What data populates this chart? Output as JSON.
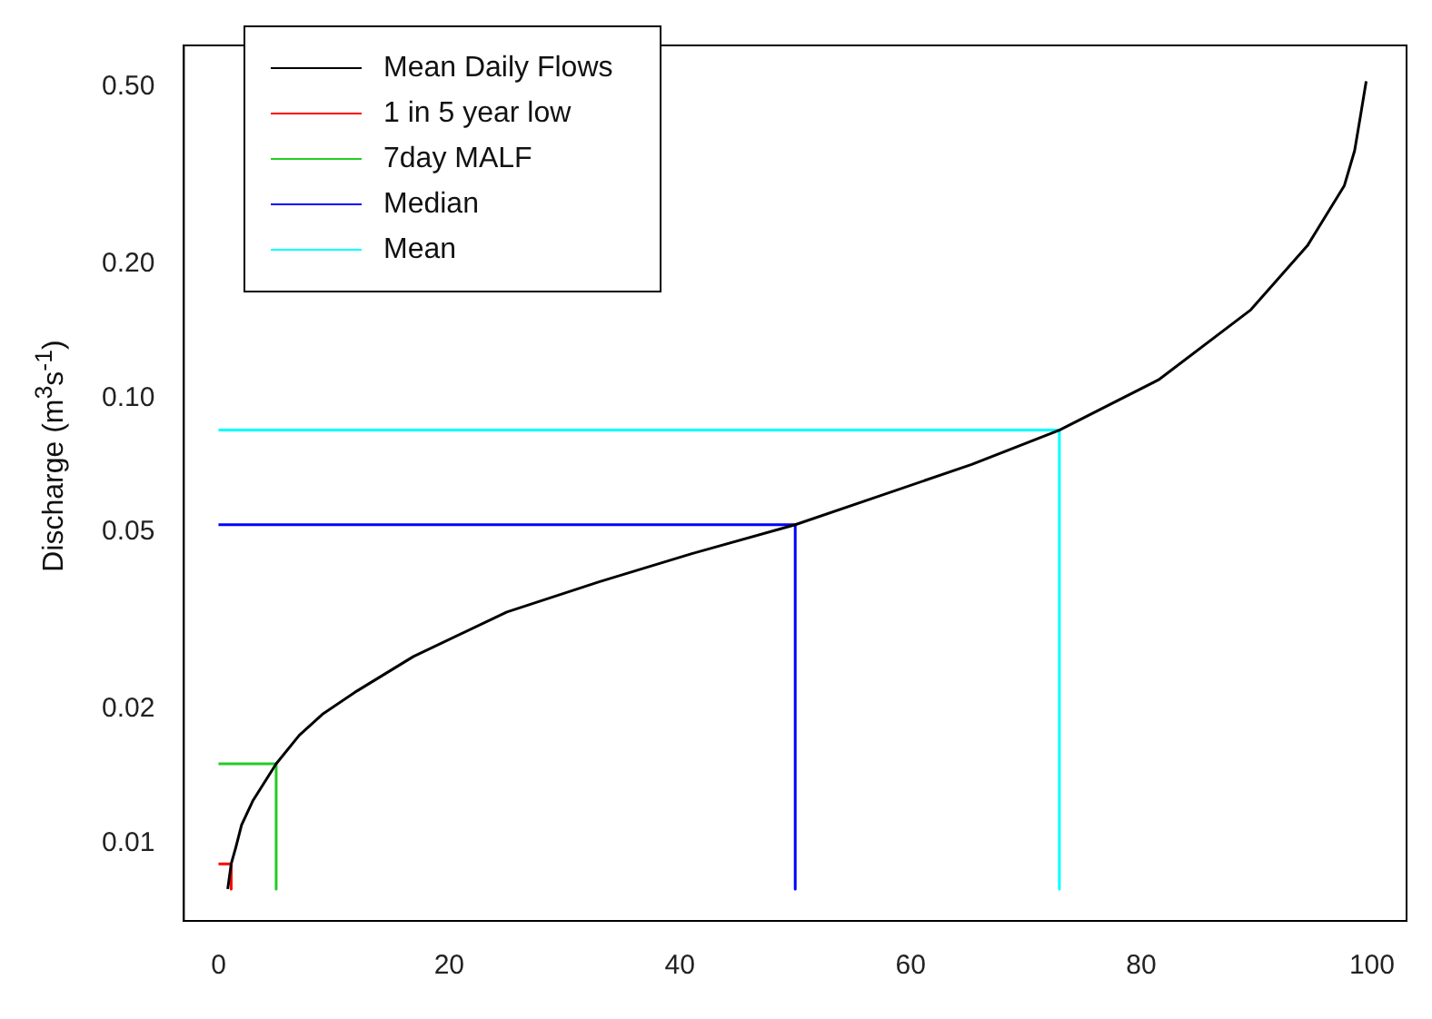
{
  "chart_data": {
    "type": "line",
    "ylabel": "Discharge (m$^{3}$s$^{-1}$)",
    "log": "y",
    "grid": false,
    "legend": "top left",
    "marker": "none",
    "line_style": "solid",
    "xlim": [
      -3,
      103
    ],
    "xticks": [
      0,
      20,
      40,
      60,
      80,
      100
    ],
    "ylim": [
      0.0067,
      0.62
    ],
    "yticks": [
      {
        "value": 0.01,
        "label": "0.01"
      },
      {
        "value": 0.02,
        "label": "0.02"
      },
      {
        "value": 0.05,
        "label": "0.05"
      },
      {
        "value": 0.1,
        "label": "0.10"
      },
      {
        "value": 0.2,
        "label": "0.20"
      },
      {
        "value": 0.5,
        "label": "0.50"
      }
    ],
    "series": [
      {
        "name": "Mean Daily Flows",
        "color": "#000000",
        "x": [
          0.8,
          1.1,
          1.5,
          2,
          3,
          5,
          7,
          9,
          12,
          16.9,
          25,
          33,
          41.1,
          50,
          57.3,
          65.3,
          72.9,
          81.5,
          89.5,
          94.4,
          97.6,
          98.5,
          99,
          99.5
        ],
        "values": [
          0.0079,
          0.009,
          0.0098,
          0.011,
          0.0125,
          0.0151,
          0.0175,
          0.0195,
          0.022,
          0.0263,
          0.0331,
          0.0387,
          0.0448,
          0.052,
          0.0603,
          0.071,
          0.0848,
          0.11,
          0.158,
          0.22,
          0.3,
          0.36,
          0.43,
          0.515
        ]
      },
      {
        "name": "1 in 5 year low",
        "color": "#ff0000",
        "x": [
          0,
          1.1,
          1.1
        ],
        "values": [
          0.009,
          0.009,
          0.0079
        ]
      },
      {
        "name": "7day MALF",
        "color": "#22cc22",
        "x": [
          0,
          5,
          5
        ],
        "values": [
          0.0151,
          0.0151,
          0.0079
        ]
      },
      {
        "name": "Median",
        "color": "#0000ff",
        "x": [
          0,
          50,
          50
        ],
        "values": [
          0.052,
          0.052,
          0.0079
        ]
      },
      {
        "name": "Mean",
        "color": "#00ffff",
        "x": [
          0,
          72.9,
          72.9
        ],
        "values": [
          0.0848,
          0.0848,
          0.0079
        ]
      }
    ]
  }
}
